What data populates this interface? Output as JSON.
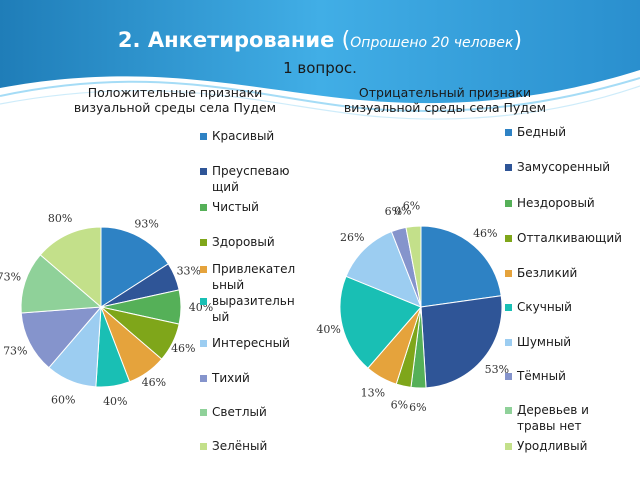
{
  "header": {
    "title_main": "2. Анкетирование",
    "paren_open": "(",
    "title_paren": "Опрошено 20 человек",
    "paren_close": ")",
    "question": "1 вопрос."
  },
  "chart_data": [
    {
      "type": "pie",
      "title": "Положительные признаки визуальной среды села Пудем",
      "categories": [
        "Красивый",
        "Преуспевающий",
        "Чистый",
        "Здоровый",
        "Привлекательный",
        "выразительный",
        "Интересный",
        "Тихий",
        "Светлый",
        "Зелёный"
      ],
      "values": [
        93,
        33,
        40,
        46,
        46,
        40,
        60,
        73,
        73,
        80
      ],
      "data_labels": [
        "93%",
        "33%",
        "40%",
        "46%",
        "46%",
        "40%",
        "60%",
        "73%",
        "73%",
        "80%"
      ],
      "legend_lines": [
        [
          "Красивый"
        ],
        [
          "Преуспеваю",
          "щий"
        ],
        [
          "Чистый"
        ],
        [
          "Здоровый"
        ],
        [
          "Привлекател",
          "ьный"
        ],
        [
          "выразительн",
          "ый"
        ],
        [
          "Интересный"
        ],
        [
          "Тихий"
        ],
        [
          "Светлый"
        ],
        [
          "Зелёный"
        ]
      ],
      "colors": [
        "#2e82c4",
        "#2f5597",
        "#55b058",
        "#7fa61a",
        "#e5a33c",
        "#19bfb4",
        "#9ccdf1",
        "#8594cc",
        "#8fd199",
        "#c3e08a"
      ],
      "legend_position": "right"
    },
    {
      "type": "pie",
      "title": "Отрицательный признаки визуальной среды села Пудем",
      "categories": [
        "Бедный",
        "Замусоренный",
        "Нездоровый",
        "Отталкивающий",
        "Безликий",
        "Скучный",
        "Шумный",
        "Тёмный",
        "Деревьев и травы нет",
        "Уродливый"
      ],
      "values": [
        46,
        53,
        6,
        6,
        13,
        40,
        26,
        6,
        0,
        6
      ],
      "data_labels": [
        "46%",
        "53%",
        "6%",
        "6%",
        "13%",
        "40%",
        "26%",
        "6%",
        "0%",
        "6%"
      ],
      "legend_lines": [
        [
          "Бедный"
        ],
        [
          "Замусоренный"
        ],
        [
          "Нездоровый"
        ],
        [
          "Отталкивающий"
        ],
        [
          "Безликий"
        ],
        [
          "Скучный"
        ],
        [
          "Шумный"
        ],
        [
          "Тёмный"
        ],
        [
          "Деревьев и",
          "травы нет"
        ],
        [
          "Уродливый"
        ]
      ],
      "colors": [
        "#2e82c4",
        "#2f5597",
        "#55b058",
        "#7fa61a",
        "#e5a33c",
        "#19bfb4",
        "#9ccdf1",
        "#8594cc",
        "#8fd199",
        "#c3e08a"
      ],
      "legend_position": "right"
    }
  ]
}
